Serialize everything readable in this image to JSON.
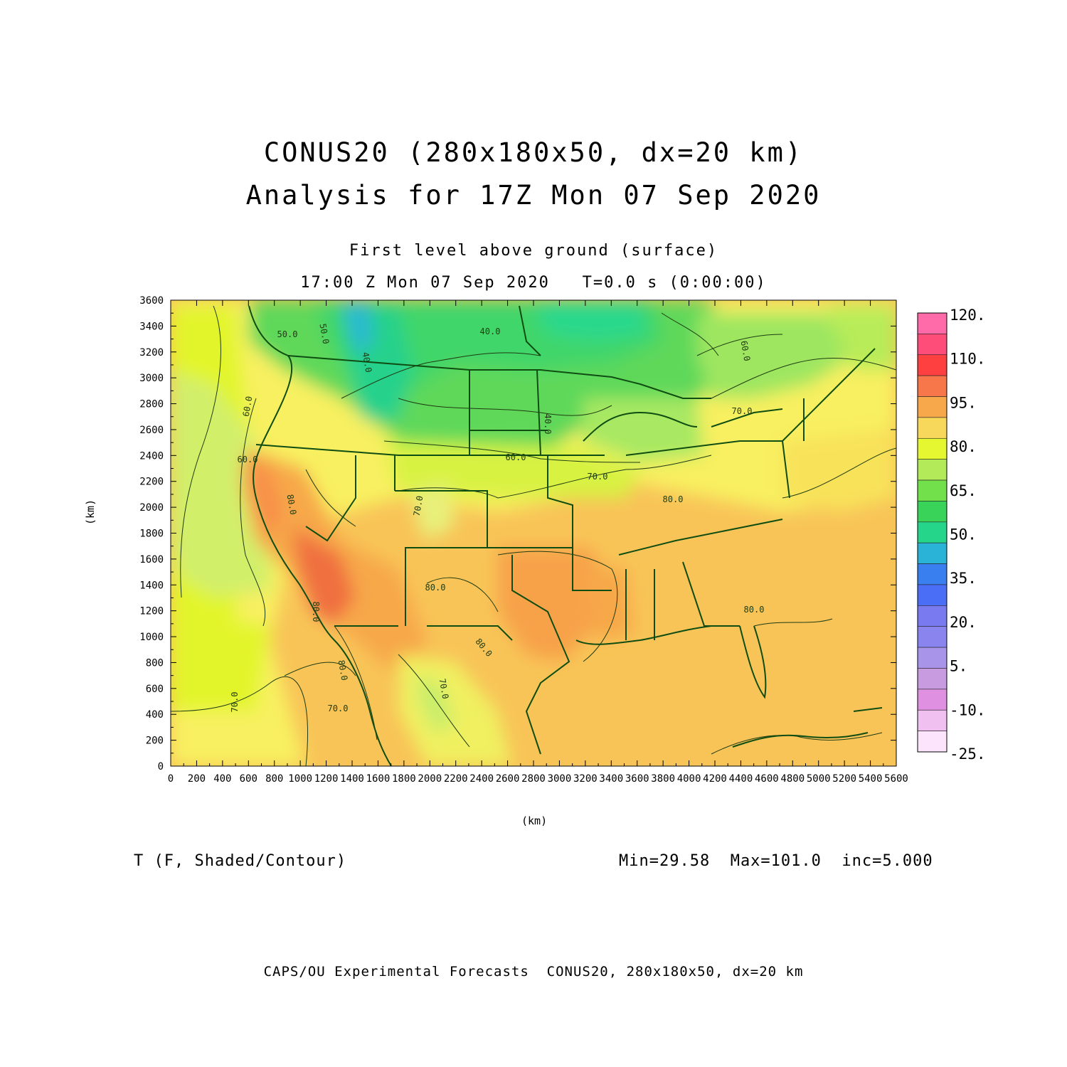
{
  "title": {
    "line1": "CONUS20 (280x180x50, dx=20 km)",
    "line2": "Analysis for 17Z Mon 07 Sep 2020"
  },
  "subtitle": {
    "level": "First level above ground (surface)",
    "time": "17:00 Z Mon 07 Sep 2020   T=0.0 s (0:00:00)"
  },
  "axes": {
    "x_unit": "(km)",
    "y_unit": "(km)",
    "x_ticks": [
      "0",
      "200",
      "400",
      "600",
      "800",
      "1000",
      "1200",
      "1400",
      "1600",
      "1800",
      "2000",
      "2200",
      "2400",
      "2600",
      "2800",
      "3000",
      "3200",
      "3400",
      "3600",
      "3800",
      "4000",
      "4200",
      "4400",
      "4600",
      "4800",
      "5000",
      "5200",
      "5400",
      "5600"
    ],
    "y_ticks": [
      "0",
      "200",
      "400",
      "600",
      "800",
      "1000",
      "1200",
      "1400",
      "1600",
      "1800",
      "2000",
      "2200",
      "2400",
      "2600",
      "2800",
      "3000",
      "3200",
      "3400",
      "3600"
    ],
    "x_range": [
      0,
      5600
    ],
    "y_range": [
      0,
      3600
    ]
  },
  "colorbar": {
    "labels": [
      "120.",
      "110.",
      "95.",
      "80.",
      "65.",
      "50.",
      "35.",
      "20.",
      "5.",
      "-10.",
      "-25."
    ],
    "colors": [
      "#ff6aa8",
      "#ff4d7a",
      "#ff4040",
      "#f7764a",
      "#f7a84a",
      "#f8d85a",
      "#e4f731",
      "#b2ea5a",
      "#72e04a",
      "#3ad35a",
      "#25d68a",
      "#2ab3d6",
      "#3a7ff0",
      "#4a6ef5",
      "#7a7af0",
      "#8a85ee",
      "#a895ea",
      "#c89ae0",
      "#e090e0",
      "#f0c0f0",
      "#fce4fc"
    ]
  },
  "contour_labels": [
    "60.0",
    "50.0",
    "50.0",
    "40.0",
    "40.0",
    "40.0",
    "60.0",
    "60.0",
    "60.0",
    "70.0",
    "70.0",
    "80.0",
    "80.0",
    "80.0",
    "80.0",
    "70.0",
    "80.0",
    "70.0",
    "80.0",
    "80.0",
    "70.0",
    "70.0"
  ],
  "field": {
    "variable": "T (F, Shaded/Contour)",
    "stats": "Min=29.58  Max=101.0  inc=5.000"
  },
  "footer": "CAPS/OU Experimental Forecasts  CONUS20, 280x180x50, dx=20 km"
}
